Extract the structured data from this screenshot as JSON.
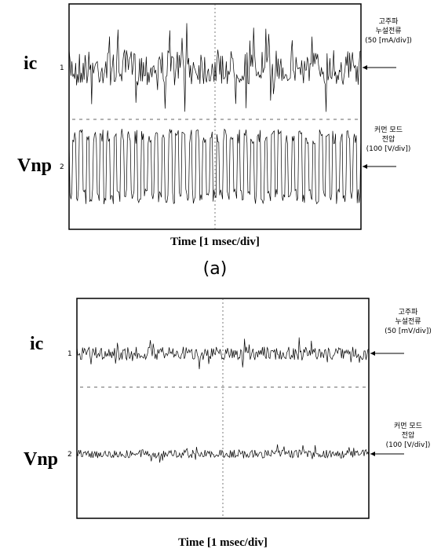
{
  "panels": [
    {
      "channels": [
        {
          "label": "ic",
          "marker": "1",
          "annotation": [
            "고주파",
            "누설전류",
            "(50 [mA/div])"
          ]
        },
        {
          "label": "Vnp",
          "marker": "2",
          "annotation": [
            "커먼 모드",
            "전압",
            "(100 [V/div])"
          ]
        }
      ],
      "x_label": "Time [1 msec/div]",
      "caption": "(a)"
    },
    {
      "channels": [
        {
          "label": "ic",
          "marker": "1",
          "annotation": [
            "고주파",
            "누설전류",
            "(50 [mV/div])"
          ]
        },
        {
          "label": "Vnp",
          "marker": "2",
          "annotation": [
            "커먼 모드",
            "전압",
            "(100 [V/div])"
          ]
        }
      ],
      "x_label": "Time [1 msec/div]"
    }
  ]
}
